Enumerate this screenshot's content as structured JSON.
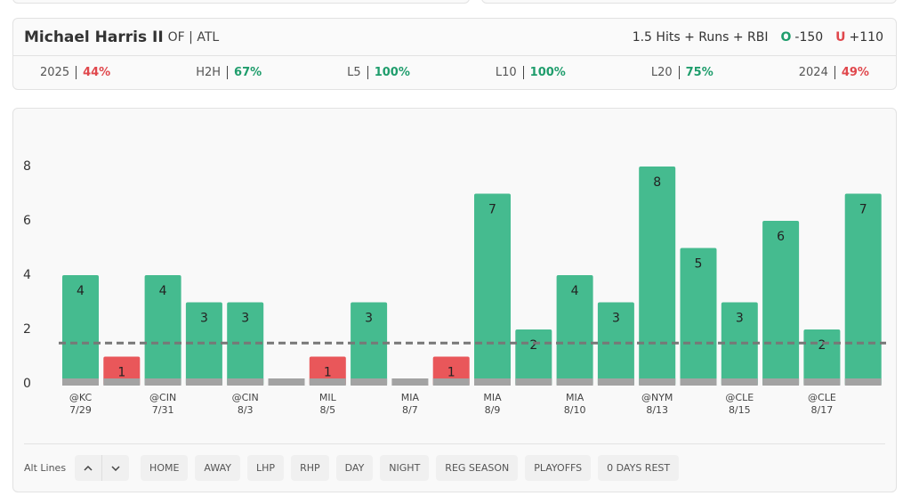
{
  "header": {
    "name": "Michael Harris II",
    "position": "OF | ATL",
    "market": "1.5 Hits + Runs + RBI",
    "over": {
      "label": "O",
      "odds": "-150"
    },
    "under": {
      "label": "U",
      "odds": "+110"
    }
  },
  "stats": [
    {
      "label": "2025",
      "value": "44%",
      "color": "#e0474c"
    },
    {
      "label": "H2H",
      "value": "67%",
      "color": "#1f9d6c"
    },
    {
      "label": "L5",
      "value": "100%",
      "color": "#1f9d6c"
    },
    {
      "label": "L10",
      "value": "100%",
      "color": "#1f9d6c"
    },
    {
      "label": "L20",
      "value": "75%",
      "color": "#1f9d6c"
    },
    {
      "label": "2024",
      "value": "49%",
      "color": "#e0474c"
    }
  ],
  "chart_data": {
    "type": "bar",
    "categories": [
      "@KC",
      null,
      "@CIN",
      null,
      "@CIN",
      null,
      "MIL",
      null,
      "MIA",
      null,
      "MIA",
      null,
      "MIA",
      null,
      "@NYM",
      null,
      "@CLE",
      null,
      "@CLE",
      null
    ],
    "dates": [
      "7/29",
      null,
      "7/31",
      null,
      "8/3",
      null,
      "8/5",
      null,
      "8/7",
      null,
      "8/9",
      null,
      "8/10",
      null,
      "8/13",
      null,
      "8/15",
      null,
      "8/17",
      null
    ],
    "values": [
      4,
      1,
      4,
      3,
      3,
      0,
      1,
      3,
      0,
      1,
      7,
      2,
      4,
      3,
      8,
      5,
      3,
      6,
      2,
      7
    ],
    "line": 1.5,
    "over_color": "#45bb8f",
    "under_color": "#e9575a",
    "ylim": [
      0,
      8
    ],
    "yticks": [
      0,
      2,
      4,
      6,
      8
    ],
    "grid": false
  },
  "controls": {
    "alt_lines": "Alt Lines",
    "filters": [
      "HOME",
      "AWAY",
      "LHP",
      "RHP",
      "DAY",
      "NIGHT",
      "REG SEASON",
      "PLAYOFFS",
      "0 DAYS REST"
    ]
  }
}
